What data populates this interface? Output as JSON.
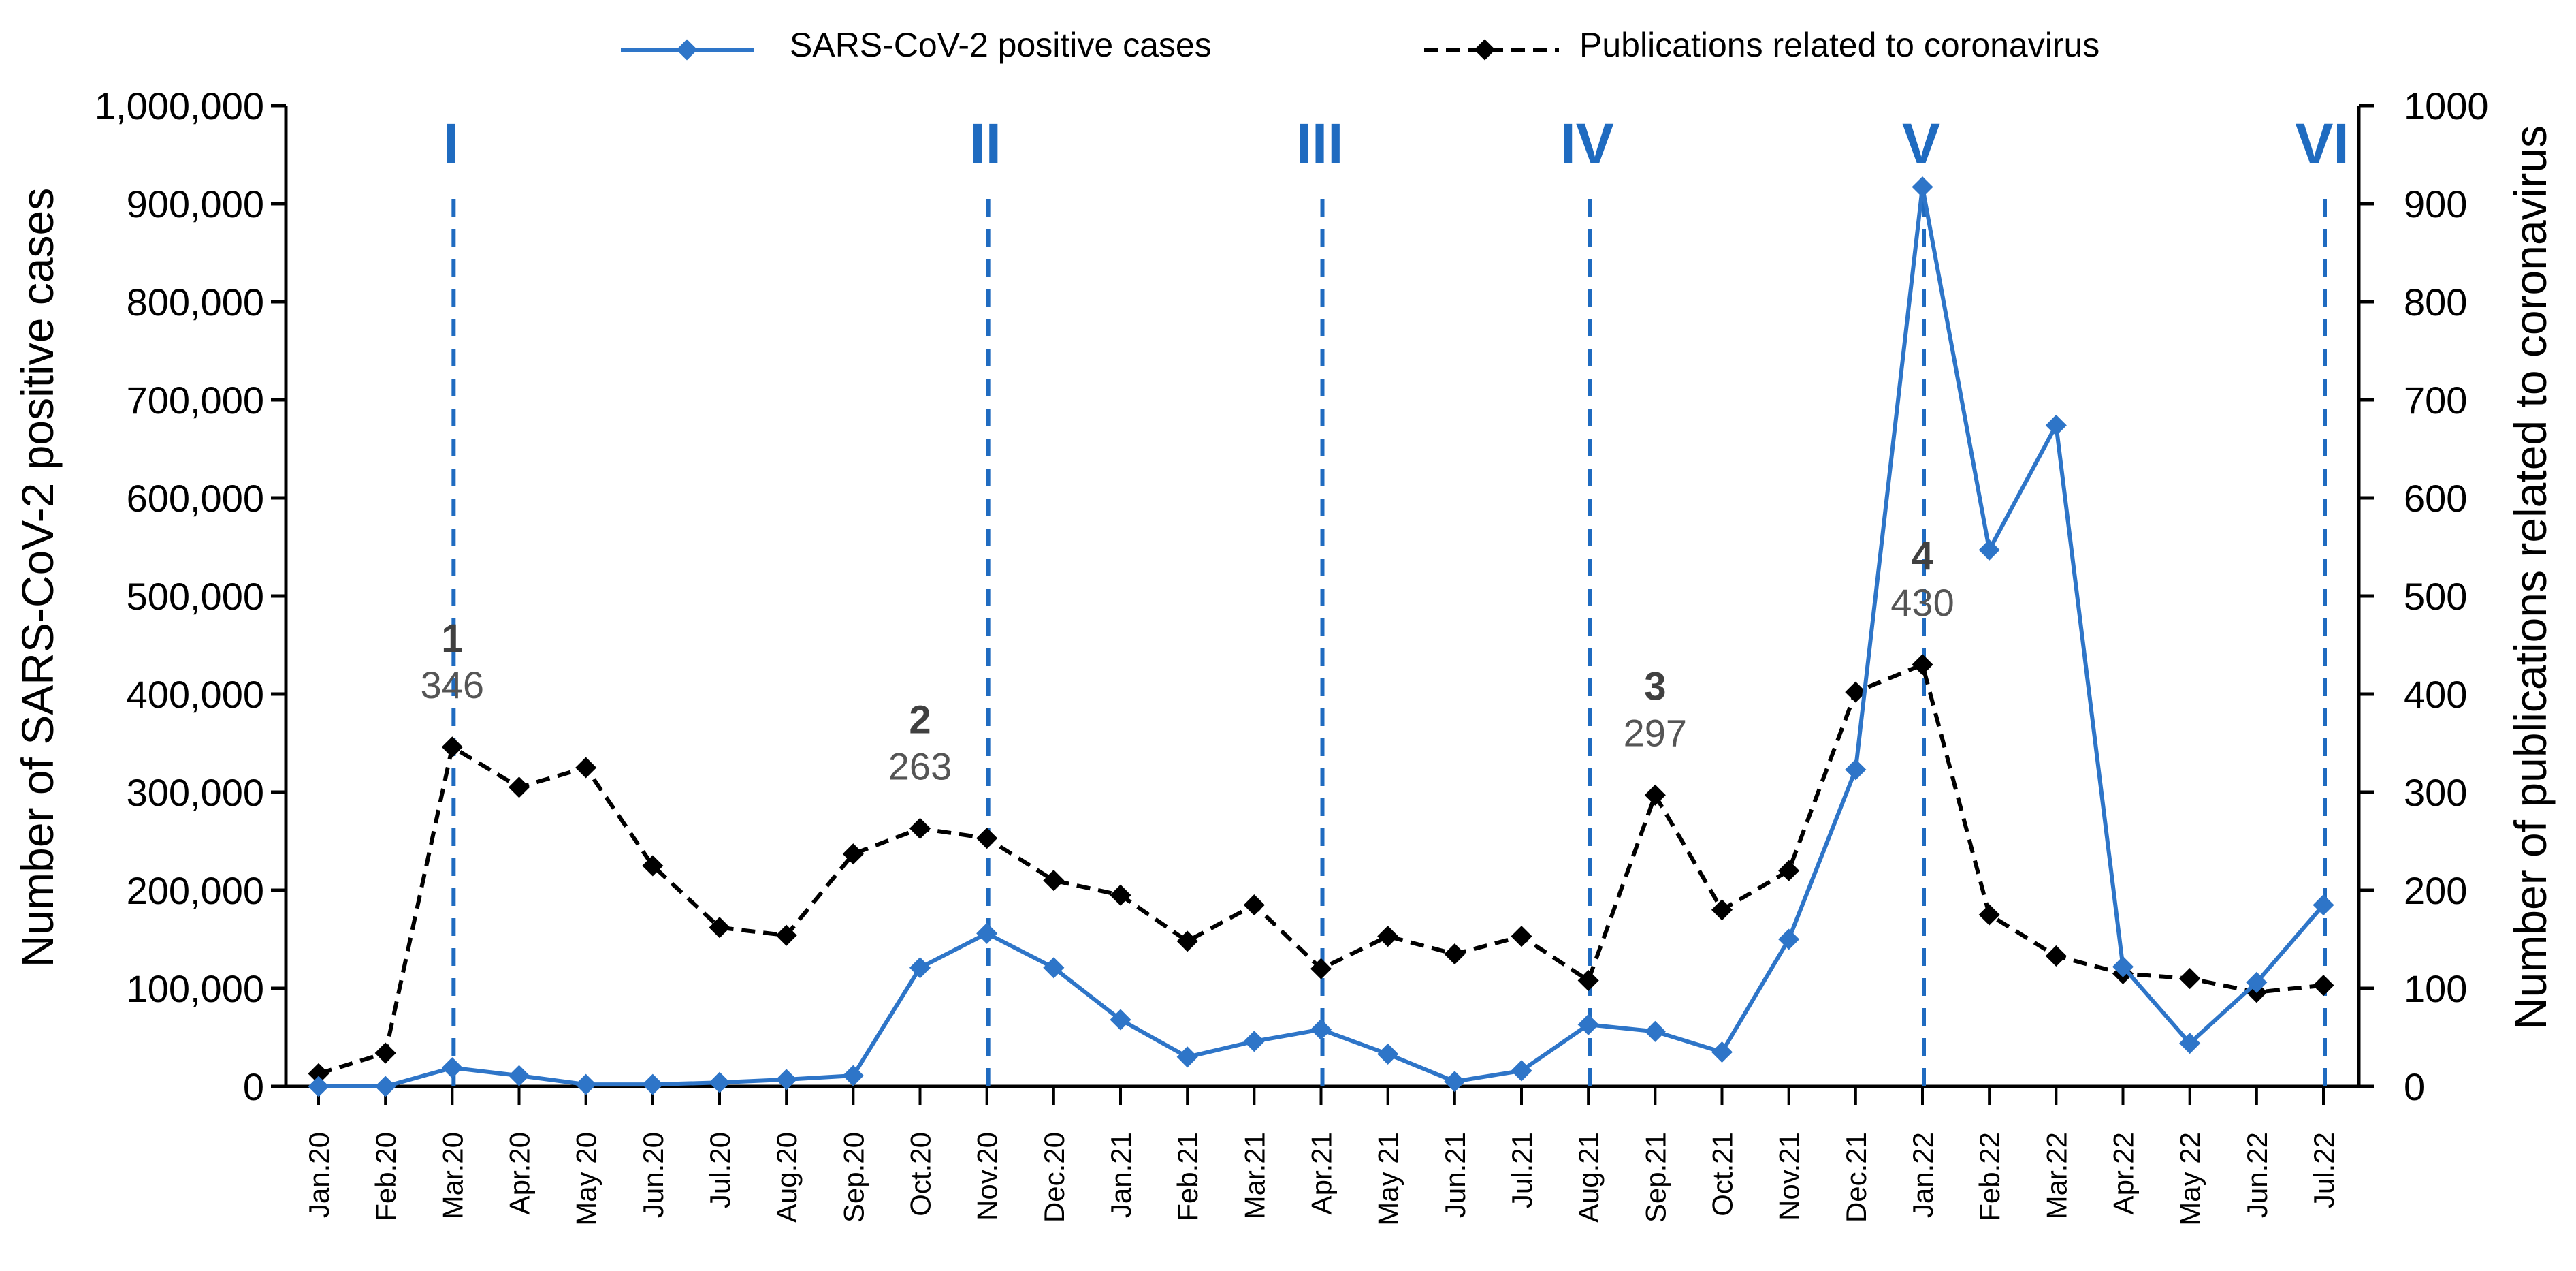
{
  "chart_data": {
    "type": "line",
    "categories": [
      "Jan.20",
      "Feb.20",
      "Mar.20",
      "Apr.20",
      "May 20",
      "Jun.20",
      "Jul.20",
      "Aug.20",
      "Sep.20",
      "Oct.20",
      "Nov.20",
      "Dec.20",
      "Jan.21",
      "Feb.21",
      "Mar.21",
      "Apr.21",
      "May 21",
      "Jun.21",
      "Jul.21",
      "Aug.21",
      "Sep.21",
      "Oct.21",
      "Nov.21",
      "Dec.21",
      "Jan.22",
      "Feb.22",
      "Mar.22",
      "Apr.22",
      "May 22",
      "Jun.22",
      "Jul.22"
    ],
    "series": [
      {
        "name": "SARS-CoV-2 positive cases",
        "axis": "left",
        "color": "#2E75C8",
        "style": "solid",
        "values": [
          0,
          0,
          19000,
          11000,
          2000,
          2000,
          4000,
          7000,
          11000,
          121000,
          156000,
          121000,
          68000,
          30000,
          46000,
          58000,
          33000,
          5000,
          16000,
          63000,
          56000,
          35000,
          150000,
          323000,
          917000,
          547000,
          674000,
          122000,
          44000,
          106000,
          185000
        ]
      },
      {
        "name": "Publications related to coronavirus",
        "axis": "right",
        "color": "#000000",
        "style": "dashed",
        "values": [
          13,
          34,
          346,
          305,
          325,
          225,
          162,
          154,
          237,
          263,
          253,
          210,
          195,
          148,
          185,
          120,
          153,
          135,
          153,
          108,
          297,
          180,
          220,
          402,
          430,
          175,
          133,
          115,
          110,
          96,
          103
        ]
      }
    ],
    "left_axis": {
      "label": "Number of SARS-CoV-2 positive cases",
      "ylim": [
        0,
        1000000
      ],
      "ticks": [
        "0",
        "100,000",
        "200,000",
        "300,000",
        "400,000",
        "500,000",
        "600,000",
        "700,000",
        "800,000",
        "900,000",
        "1,000,000"
      ]
    },
    "right_axis": {
      "label": "Number of publications related to coronavirus",
      "ylim": [
        0,
        1000
      ],
      "ticks": [
        "0",
        "100",
        "200",
        "300",
        "400",
        "500",
        "600",
        "700",
        "800",
        "900",
        "1000"
      ]
    },
    "phases": [
      {
        "label": "I",
        "category_index": 2
      },
      {
        "label": "II",
        "category_index": 10
      },
      {
        "label": "III",
        "category_index": 15
      },
      {
        "label": "IV",
        "category_index": 19
      },
      {
        "label": "V",
        "category_index": 24
      },
      {
        "label": "VI",
        "category_index": 30
      }
    ],
    "peaks": [
      {
        "number": "1",
        "value": "346",
        "category_index": 2
      },
      {
        "number": "2",
        "value": "263",
        "category_index": 9
      },
      {
        "number": "3",
        "value": "297",
        "category_index": 20
      },
      {
        "number": "4",
        "value": "430",
        "category_index": 24
      }
    ],
    "legend": {
      "position": "top-center",
      "entries": [
        "SARS-CoV-2 positive cases",
        "Publications related to coronavirus"
      ]
    },
    "phase_color": "#1F6BC0",
    "grid": false
  }
}
